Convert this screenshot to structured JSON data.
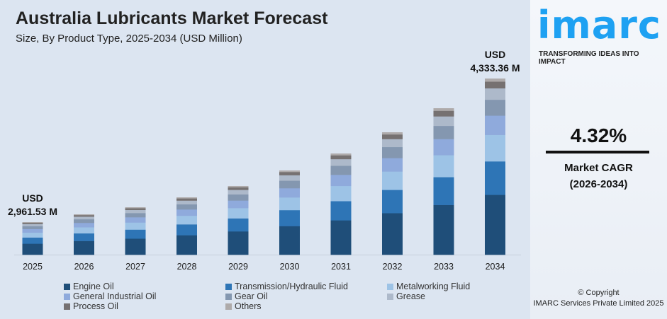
{
  "header": {
    "title": "Australia Lubricants Market Forecast",
    "subtitle": "Size, By Product Type, 2025-2034 (USD Million)"
  },
  "chart_data": {
    "type": "bar",
    "stacked": true,
    "title": "Australia Lubricants Market Forecast",
    "subtitle": "Size, By Product Type, 2025-2034 (USD Million)",
    "categories": [
      "2025",
      "2026",
      "2027",
      "2028",
      "2029",
      "2030",
      "2031",
      "2032",
      "2033",
      "2034"
    ],
    "totals": [
      2961.53,
      3035.9,
      3103.4,
      3198.1,
      3306.2,
      3454.8,
      3617.0,
      3819.7,
      4049.5,
      4333.36
    ],
    "series": [
      {
        "name": "Engine Oil",
        "share": 0.34,
        "color": "#1f4e79"
      },
      {
        "name": "Transmission/Hydraulic Fluid",
        "share": 0.19,
        "color": "#2e75b6"
      },
      {
        "name": "Metalworking Fluid",
        "share": 0.15,
        "color": "#9dc3e6"
      },
      {
        "name": "General Industrial Oil",
        "share": 0.11,
        "color": "#8faadc"
      },
      {
        "name": "Gear Oil",
        "share": 0.09,
        "color": "#8497b0"
      },
      {
        "name": "Grease",
        "share": 0.065,
        "color": "#adb9ca"
      },
      {
        "name": "Process Oil",
        "share": 0.038,
        "color": "#767171"
      },
      {
        "name": "Others",
        "share": 0.017,
        "color": "#aeaaaa"
      }
    ],
    "annotations": [
      {
        "category": "2025",
        "line1": "USD",
        "line2": "2,961.53 M"
      },
      {
        "category": "2034",
        "line1": "USD",
        "line2": "4,333.36 M"
      }
    ],
    "legend": "bottom",
    "grid": false
  },
  "brand": {
    "logo": "imarc",
    "tagline": "TRANSFORMING IDEAS INTO IMPACT"
  },
  "cagr": {
    "value": "4.32%",
    "label": "Market CAGR",
    "period": "(2026-2034)"
  },
  "copyright": {
    "line1": "© Copyright",
    "line2": "IMARC Services Private Limited 2025"
  }
}
